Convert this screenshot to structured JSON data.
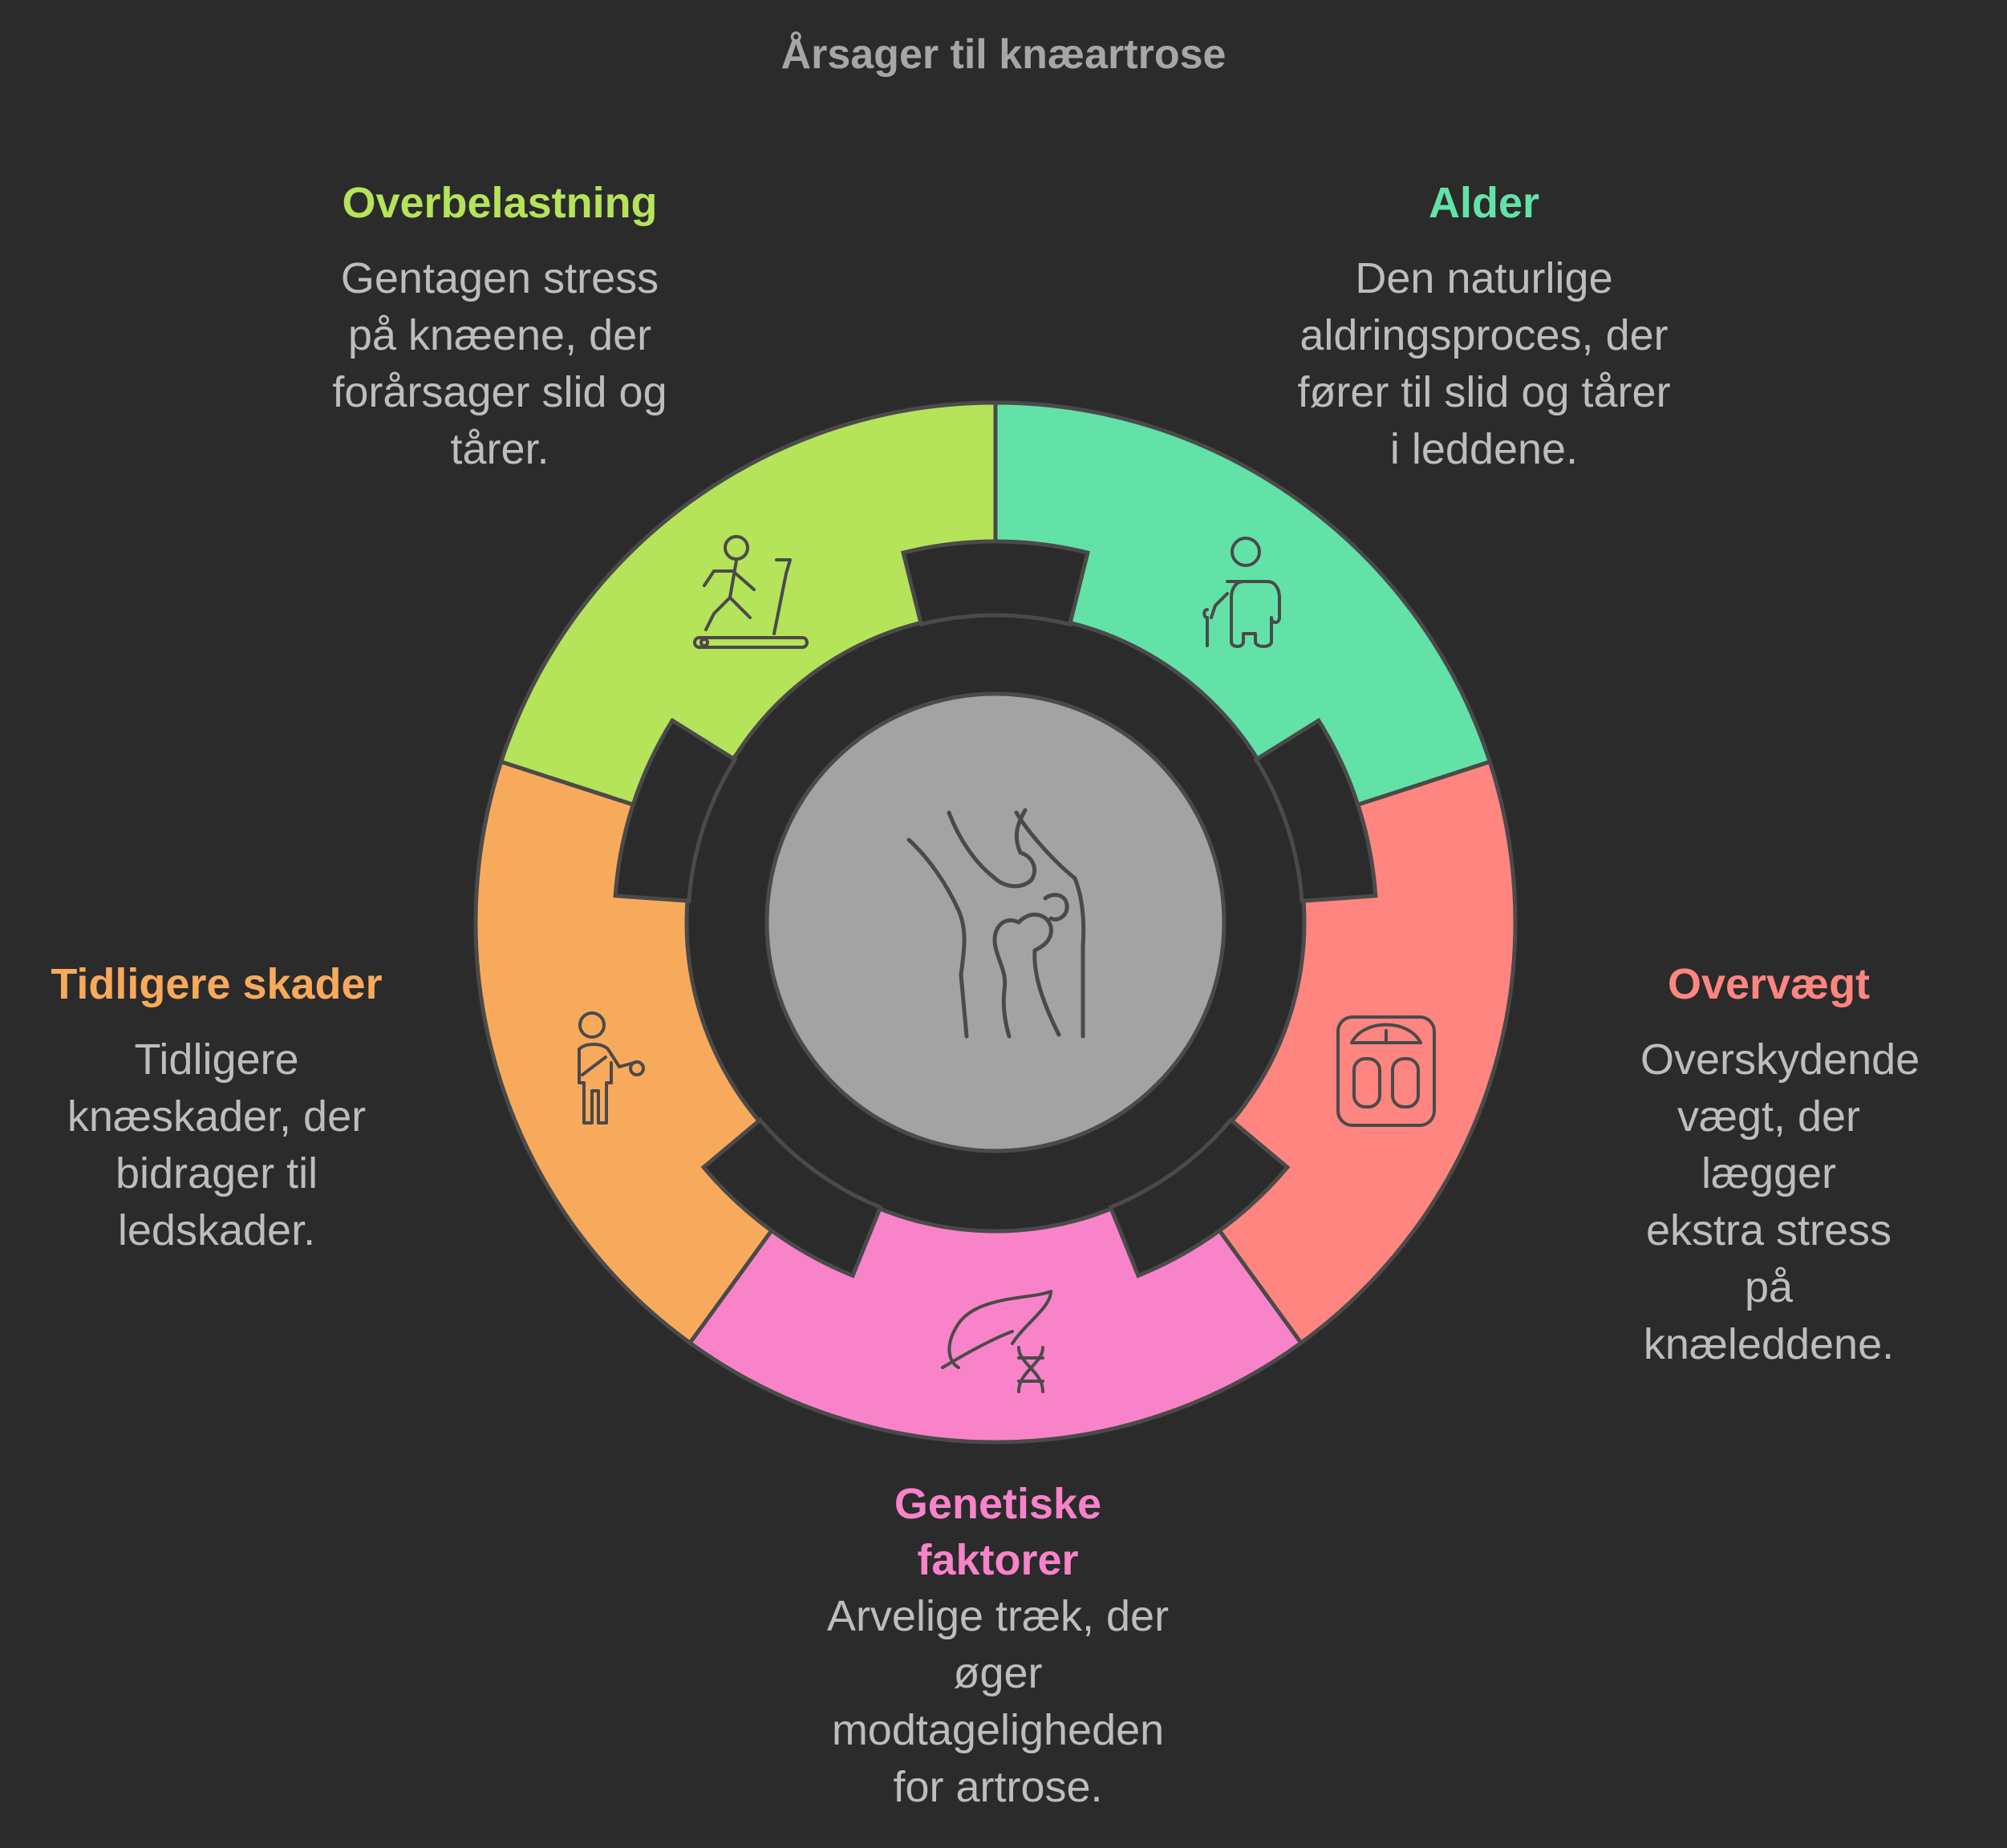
{
  "title": "Årsager til knæartrose",
  "colors": {
    "background": "#2b2b2b",
    "outline": "#4a4a4a",
    "center": "#a3a3a3"
  },
  "center_icon": "knee-joint-icon",
  "segments": [
    {
      "key": "overbelastning",
      "title": "Overbelastning",
      "description": "Gentagen stress på knæene, der forårsager slid og tårer.",
      "color": "#b5e35a",
      "icon": "treadmill-icon"
    },
    {
      "key": "alder",
      "title": "Alder",
      "description": "Den naturlige aldringsproces, der fører til slid og tårer i leddene.",
      "color": "#63e2a8",
      "icon": "elderly-person-cane-icon"
    },
    {
      "key": "overvaegt",
      "title": "Overvægt",
      "description": "Overskydende vægt, der lægger ekstra stress på knæleddene.",
      "color": "#fe8580",
      "icon": "weight-scale-icon"
    },
    {
      "key": "genetiske",
      "title": "Genetiske faktorer",
      "description": "Arvelige træk, der øger modtageligheden for artrose.",
      "color": "#f883c9",
      "icon": "leaf-dna-icon"
    },
    {
      "key": "tidligere",
      "title": "Tidligere skader",
      "description": "Tidligere knæskader, der bidrager til ledskader.",
      "color": "#f8aa5c",
      "icon": "injured-arm-person-icon"
    }
  ]
}
